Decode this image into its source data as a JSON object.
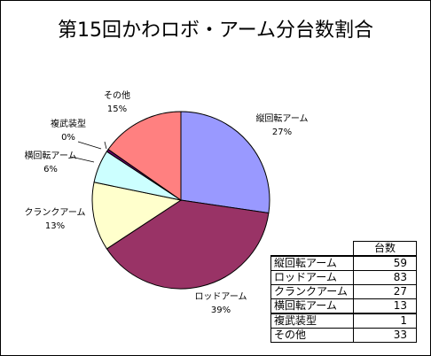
{
  "chart_data": {
    "type": "pie",
    "title": "第15回かわロボ・アーム分台数割合",
    "slices": [
      {
        "label": "縦回転アーム",
        "value": 59,
        "percent": "27%",
        "color": "#9999ff"
      },
      {
        "label": "ロッドアーム",
        "value": 83,
        "percent": "39%",
        "color": "#993366"
      },
      {
        "label": "クランクアーム",
        "value": 27,
        "percent": "13%",
        "color": "#ffffcc"
      },
      {
        "label": "横回転アーム",
        "value": 13,
        "percent": "6%",
        "color": "#ccffff"
      },
      {
        "label": "複武装型",
        "value": 1,
        "percent": "0%",
        "color": "#660066"
      },
      {
        "label": "その他",
        "value": 33,
        "percent": "15%",
        "color": "#ff8080"
      }
    ],
    "table": {
      "header": "台数",
      "rows": [
        {
          "name": "縦回転アーム",
          "value": "59"
        },
        {
          "name": "ロッドアーム",
          "value": "83"
        },
        {
          "name": "クランクアーム",
          "value": "27"
        },
        {
          "name": "横回転アーム",
          "value": "13"
        },
        {
          "name": "複武装型",
          "value": "1"
        },
        {
          "name": "その他",
          "value": "33"
        }
      ]
    }
  }
}
